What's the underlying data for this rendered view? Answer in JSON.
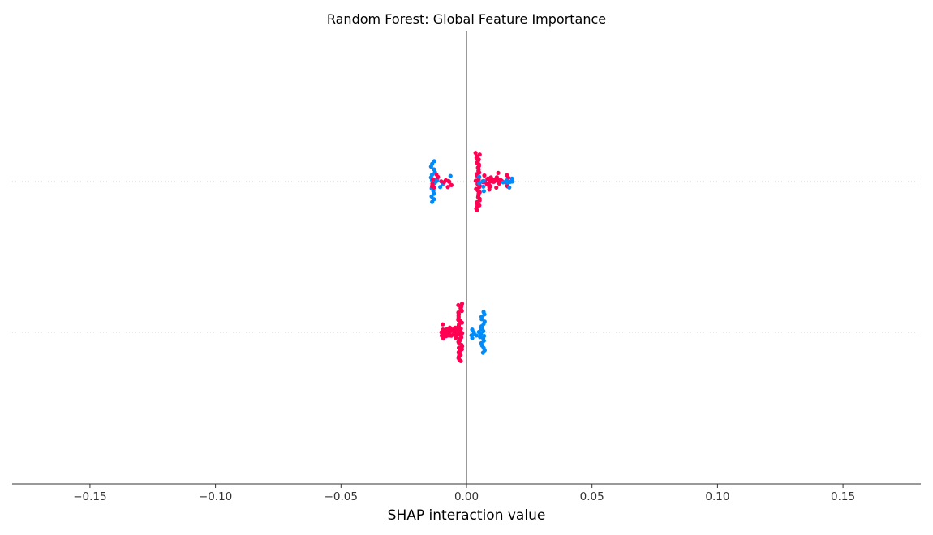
{
  "chart_data": {
    "type": "scatter",
    "title": "Random Forest: Global Feature Importance",
    "xlabel": "SHAP interaction value",
    "ylabel": "",
    "xlim": [
      -0.181,
      0.181
    ],
    "x_ticks": [
      -0.15,
      -0.1,
      -0.05,
      0.0,
      0.05,
      0.1,
      0.15
    ],
    "x_tick_labels": [
      "−0.15",
      "−0.10",
      "−0.05",
      "0.00",
      "0.05",
      "0.10",
      "0.15"
    ],
    "zero_line": true,
    "grid": false,
    "legend": "none",
    "colors": {
      "high": "#ff0052",
      "low": "#008bfb",
      "zero_line": "#999999",
      "row_line": "#cccccc",
      "axis": "#333333"
    },
    "series": [
      {
        "row": 0,
        "clusters": [
          {
            "color": "high",
            "x": 0.0045,
            "count": 36,
            "spread": 0.0009,
            "span": 0.38
          },
          {
            "color": "high",
            "x": 0.012,
            "count": 40,
            "spread": 0.0055,
            "span": 0.08
          },
          {
            "color": "low",
            "x": 0.016,
            "count": 10,
            "spread": 0.0025,
            "span": 0.07
          },
          {
            "color": "low",
            "x": 0.006,
            "count": 6,
            "spread": 0.001,
            "span": 0.08
          },
          {
            "color": "low",
            "x": -0.0135,
            "count": 16,
            "spread": 0.0012,
            "span": 0.27
          },
          {
            "color": "high",
            "x": -0.013,
            "count": 6,
            "spread": 0.001,
            "span": 0.1
          },
          {
            "color": "low",
            "x": -0.0095,
            "count": 6,
            "spread": 0.0035,
            "span": 0.06
          },
          {
            "color": "high",
            "x": -0.0085,
            "count": 8,
            "spread": 0.003,
            "span": 0.05
          }
        ]
      },
      {
        "row": 1,
        "clusters": [
          {
            "color": "high",
            "x": -0.0025,
            "count": 40,
            "spread": 0.0008,
            "span": 0.38
          },
          {
            "color": "high",
            "x": -0.0065,
            "count": 38,
            "spread": 0.0035,
            "span": 0.07
          },
          {
            "color": "low",
            "x": 0.0065,
            "count": 18,
            "spread": 0.0008,
            "span": 0.27
          },
          {
            "color": "low",
            "x": 0.0045,
            "count": 12,
            "spread": 0.0028,
            "span": 0.06
          }
        ]
      }
    ]
  }
}
